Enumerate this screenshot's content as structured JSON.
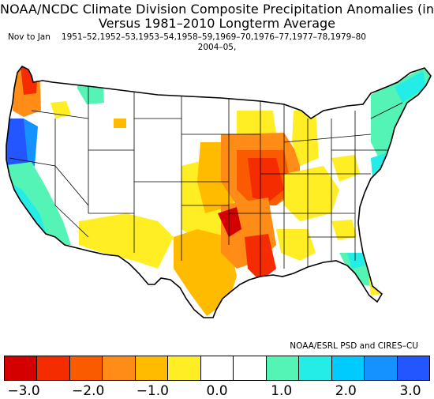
{
  "header": {
    "title_line1": "NOAA/NCDC Climate Division Composite Precipitation Anomalies (in)",
    "title_line2": "Versus 1981–2010 Longterm Average",
    "period": "Nov to Jan",
    "years_line1": "1951–52,1952–53,1953–54,1958–59,1969–70,1976–77,1977–78,1979–80",
    "years_line2": "2004–05,"
  },
  "credit": "NOAA/ESRL PSD and CIRES–CU",
  "legend": {
    "colors": [
      "#d40000",
      "#f42c00",
      "#fa5a00",
      "#fe8c16",
      "#ffbb00",
      "#ffee24",
      "#ffffff",
      "#ffffff",
      "#53f4b6",
      "#24ece6",
      "#00cbff",
      "#1592ff",
      "#2356ff"
    ],
    "tick_labels": [
      "−3.0",
      "−2.0",
      "−1.0",
      "0.0",
      "1.0",
      "2.0",
      "3.0"
    ]
  },
  "map": {
    "region": "contiguous United States climate divisions",
    "value_unit": "in",
    "wet_areas": [
      "Washington–Oregon coast",
      "Northern California",
      "California",
      "Idaho",
      "Northeast",
      "Florida"
    ],
    "dry_areas": [
      "Lower Mississippi Valley",
      "Arkansas",
      "Louisiana",
      "Missouri",
      "Texas",
      "Ohio Valley"
    ]
  }
}
